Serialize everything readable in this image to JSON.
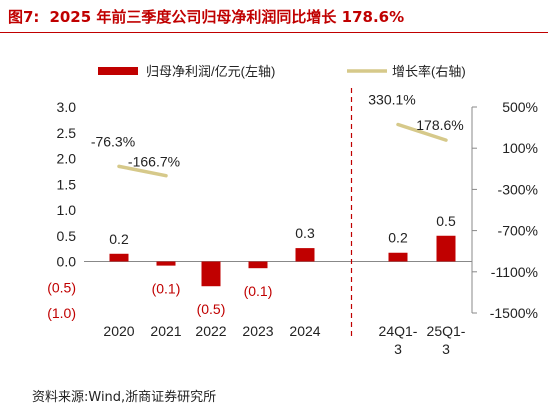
{
  "title_prefix": "图7:",
  "title": "2025 年前三季度公司归母净利润同比增长 178.6%",
  "source": "资料来源:Wind,浙商证券研究所",
  "chart_data": {
    "type": "bar",
    "categories": [
      "2020",
      "2021",
      "2022",
      "2023",
      "2024",
      "24Q1-3",
      "25Q1-3"
    ],
    "series": [
      {
        "name": "归母净利润/亿元(左轴)",
        "type": "bar",
        "axis": "left",
        "values": [
          0.15,
          -0.08,
          -0.48,
          -0.13,
          0.26,
          0.17,
          0.5
        ],
        "labels": [
          "0.2",
          "(0.1)",
          "(0.5)",
          "(0.1)",
          "0.3",
          "0.2",
          "0.5"
        ]
      },
      {
        "name": "增长率(右轴)",
        "type": "line",
        "axis": "right",
        "segments": [
          {
            "categories": [
              "2020",
              "2021"
            ],
            "values": [
              -76.3,
              -166.7
            ],
            "labels": [
              "-76.3%",
              "-166.7%"
            ]
          },
          {
            "categories": [
              "24Q1-3",
              "25Q1-3"
            ],
            "values": [
              330.1,
              178.6
            ],
            "labels": [
              "330.1%",
              "178.6%"
            ]
          }
        ]
      }
    ],
    "left_axis": {
      "ylim": [
        -1.0,
        3.0
      ],
      "ticks": [
        3.0,
        2.5,
        2.0,
        1.5,
        1.0,
        0.5,
        0.0,
        -0.5,
        -1.0
      ],
      "tick_labels": [
        "3.0",
        "2.5",
        "2.0",
        "1.5",
        "1.0",
        "0.5",
        "0.0",
        "(0.5)",
        "(1.0)"
      ]
    },
    "right_axis": {
      "ylim": [
        -1500,
        500
      ],
      "ticks": [
        500,
        100,
        -300,
        -700,
        -1100,
        -1500
      ],
      "tick_labels": [
        "500%",
        "100%",
        "-300%",
        "-700%",
        "-1100%",
        "-1500%"
      ]
    },
    "x_tick_labels": [
      [
        "2020"
      ],
      [
        "2021"
      ],
      [
        "2022"
      ],
      [
        "2023"
      ],
      [
        "2024"
      ],
      [
        "24Q1-",
        "3"
      ],
      [
        "25Q1-",
        "3"
      ]
    ],
    "divider_after": "2024",
    "legend_position": "top",
    "grid": false,
    "colors": {
      "bar": "#c00000",
      "line": "#d6c98a",
      "negative_label": "#c00000",
      "divider": "#c00000",
      "title": "#c00000"
    }
  }
}
